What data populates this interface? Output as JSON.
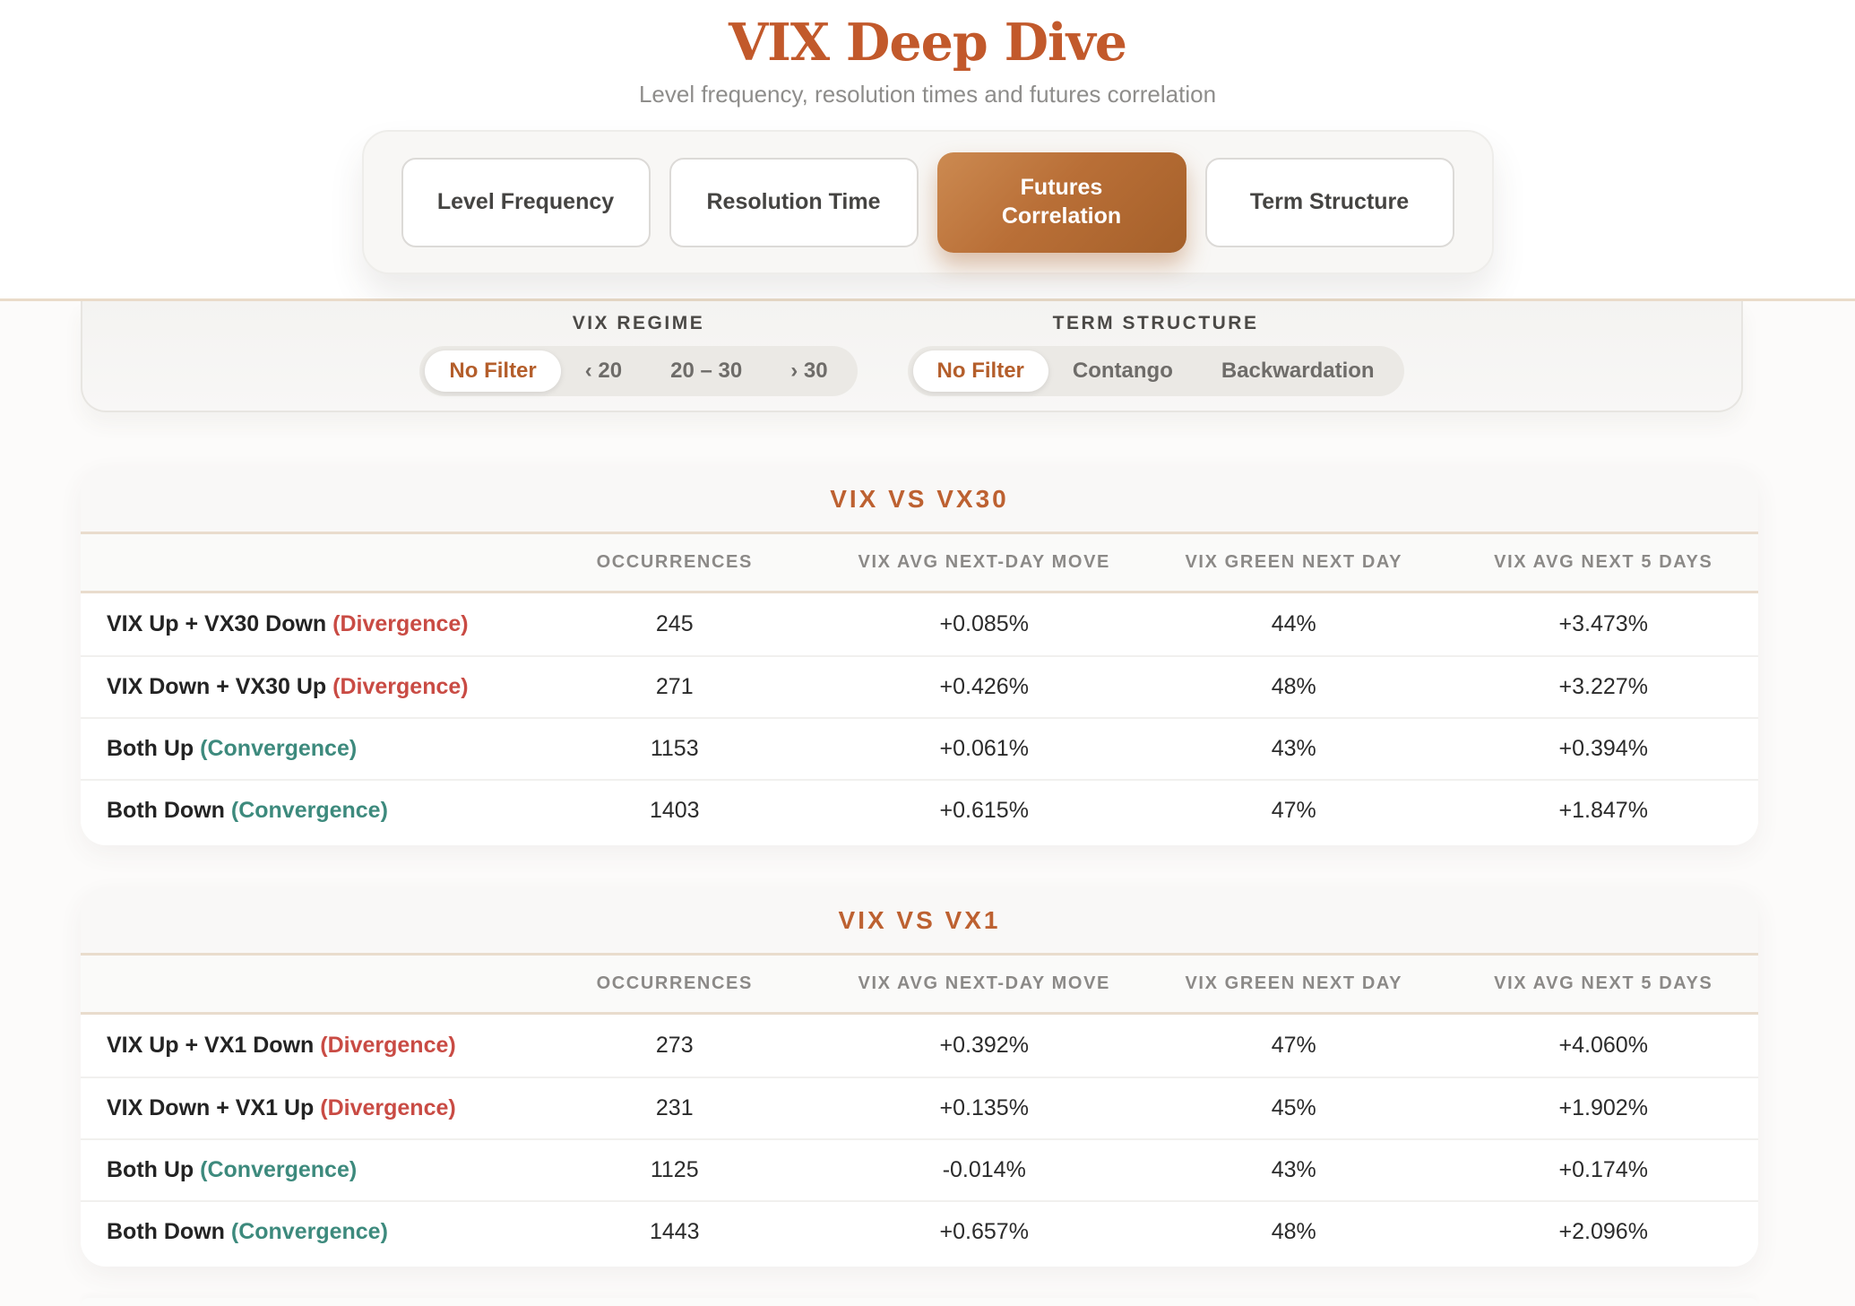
{
  "header": {
    "title": "VIX Deep Dive",
    "subtitle": "Level frequency, resolution times and futures correlation"
  },
  "tabs": [
    {
      "label": "Level Frequency",
      "active": false
    },
    {
      "label": "Resolution Time",
      "active": false
    },
    {
      "label": "Futures Correlation",
      "active": true
    },
    {
      "label": "Term Structure",
      "active": false
    }
  ],
  "filters": [
    {
      "label": "VIX REGIME",
      "options": [
        {
          "label": "No Filter",
          "active": true
        },
        {
          "label": "‹ 20",
          "active": false
        },
        {
          "label": "20 – 30",
          "active": false
        },
        {
          "label": "› 30",
          "active": false
        }
      ]
    },
    {
      "label": "TERM STRUCTURE",
      "options": [
        {
          "label": "No Filter",
          "active": true
        },
        {
          "label": "Contango",
          "active": false
        },
        {
          "label": "Backwardation",
          "active": false
        }
      ]
    }
  ],
  "tables": [
    {
      "title": "VIX VS VX30",
      "columns": [
        "OCCURRENCES",
        "VIX AVG NEXT-DAY MOVE",
        "VIX GREEN NEXT DAY",
        "VIX AVG NEXT 5 DAYS"
      ],
      "rows": [
        {
          "label": "VIX Up + VX30 Down",
          "tag": "(Divergence)",
          "tag_type": "divergence",
          "values": [
            "245",
            "+0.085%",
            "44%",
            "+3.473%"
          ]
        },
        {
          "label": "VIX Down + VX30 Up",
          "tag": "(Divergence)",
          "tag_type": "divergence",
          "values": [
            "271",
            "+0.426%",
            "48%",
            "+3.227%"
          ]
        },
        {
          "label": "Both Up",
          "tag": "(Convergence)",
          "tag_type": "convergence",
          "values": [
            "1153",
            "+0.061%",
            "43%",
            "+0.394%"
          ]
        },
        {
          "label": "Both Down",
          "tag": "(Convergence)",
          "tag_type": "convergence",
          "values": [
            "1403",
            "+0.615%",
            "47%",
            "+1.847%"
          ]
        }
      ]
    },
    {
      "title": "VIX VS VX1",
      "columns": [
        "OCCURRENCES",
        "VIX AVG NEXT-DAY MOVE",
        "VIX GREEN NEXT DAY",
        "VIX AVG NEXT 5 DAYS"
      ],
      "rows": [
        {
          "label": "VIX Up + VX1 Down",
          "tag": "(Divergence)",
          "tag_type": "divergence",
          "values": [
            "273",
            "+0.392%",
            "47%",
            "+4.060%"
          ]
        },
        {
          "label": "VIX Down + VX1 Up",
          "tag": "(Divergence)",
          "tag_type": "divergence",
          "values": [
            "231",
            "+0.135%",
            "45%",
            "+1.902%"
          ]
        },
        {
          "label": "Both Up",
          "tag": "(Convergence)",
          "tag_type": "convergence",
          "values": [
            "1125",
            "-0.014%",
            "43%",
            "+0.174%"
          ]
        },
        {
          "label": "Both Down",
          "tag": "(Convergence)",
          "tag_type": "convergence",
          "values": [
            "1443",
            "+0.657%",
            "48%",
            "+2.096%"
          ]
        }
      ]
    }
  ],
  "colors": {
    "accent": "#c2592b",
    "active_tab_gradient_start": "#cc8a51",
    "active_tab_gradient_end": "#a5602a",
    "divergence": "#c94b44",
    "convergence": "#3d8a7d",
    "divider_beige": "#e9dccd",
    "panel_bg": "#f9f8f7"
  }
}
